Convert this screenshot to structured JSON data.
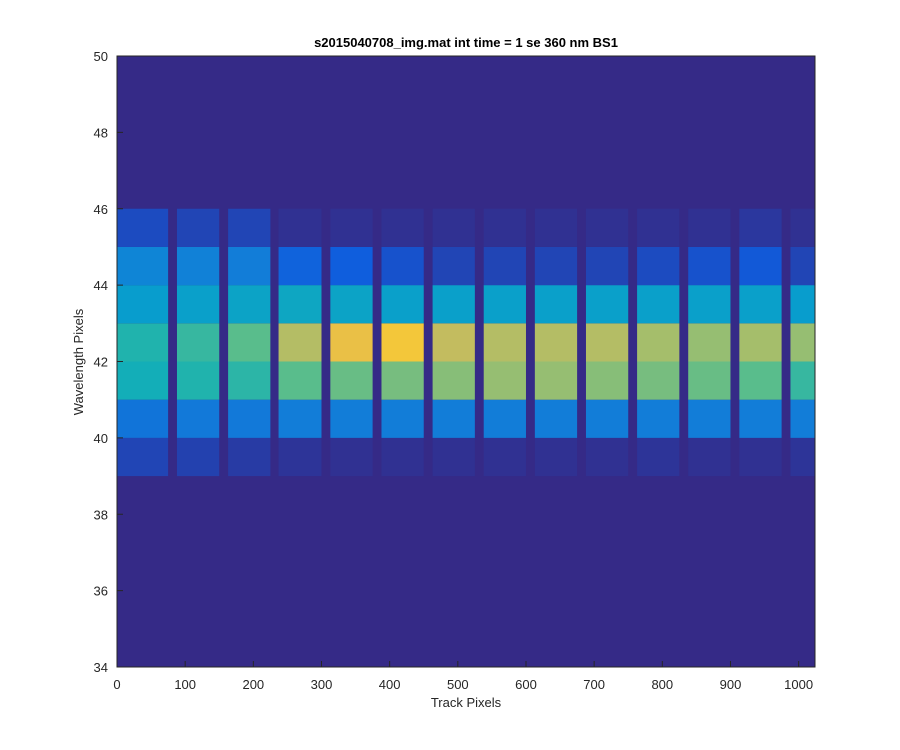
{
  "chart_data": {
    "type": "heatmap",
    "title": "s2015040708_img.mat int time = 1 se  360 nm BS1",
    "xlabel": "Track Pixels",
    "ylabel": "Wavelength Pixels",
    "xlim": [
      0,
      1024
    ],
    "ylim": [
      34,
      50
    ],
    "x_ticks": [
      0,
      100,
      200,
      300,
      400,
      500,
      600,
      700,
      800,
      900,
      1000
    ],
    "y_ticks": [
      34,
      36,
      38,
      40,
      42,
      44,
      46,
      48,
      50
    ],
    "colormap": "parula",
    "color_range": [
      0,
      1
    ],
    "background_value": 0.0,
    "bright_column_ranges": [
      [
        0,
        75
      ],
      [
        88,
        150
      ],
      [
        163,
        225
      ],
      [
        237,
        300
      ],
      [
        313,
        375
      ],
      [
        388,
        450
      ],
      [
        463,
        525
      ],
      [
        538,
        600
      ],
      [
        613,
        675
      ],
      [
        688,
        750
      ],
      [
        763,
        825
      ],
      [
        838,
        900
      ],
      [
        913,
        975
      ],
      [
        988,
        1024
      ]
    ],
    "rows": [
      {
        "wavelength_pixel": 39,
        "block_values": [
          0.08,
          0.07,
          0.05,
          0.03,
          0.02,
          0.02,
          0.02,
          0.02,
          0.02,
          0.02,
          0.03,
          0.02,
          0.02,
          0.03
        ]
      },
      {
        "wavelength_pixel": 40,
        "block_values": [
          0.26,
          0.28,
          0.28,
          0.3,
          0.3,
          0.3,
          0.3,
          0.3,
          0.3,
          0.3,
          0.3,
          0.3,
          0.3,
          0.3
        ]
      },
      {
        "wavelength_pixel": 41,
        "block_values": [
          0.58,
          0.62,
          0.64,
          0.72,
          0.74,
          0.76,
          0.78,
          0.8,
          0.8,
          0.78,
          0.76,
          0.74,
          0.72,
          0.66
        ]
      },
      {
        "wavelength_pixel": 42,
        "block_values": [
          0.62,
          0.66,
          0.72,
          0.84,
          0.92,
          0.94,
          0.86,
          0.84,
          0.84,
          0.84,
          0.82,
          0.8,
          0.82,
          0.8
        ]
      },
      {
        "wavelength_pixel": 43,
        "block_values": [
          0.46,
          0.48,
          0.5,
          0.52,
          0.5,
          0.48,
          0.48,
          0.48,
          0.48,
          0.48,
          0.48,
          0.48,
          0.48,
          0.46
        ]
      },
      {
        "wavelength_pixel": 44,
        "block_values": [
          0.34,
          0.32,
          0.3,
          0.18,
          0.16,
          0.12,
          0.08,
          0.08,
          0.08,
          0.08,
          0.1,
          0.12,
          0.14,
          0.08
        ]
      },
      {
        "wavelength_pixel": 45,
        "block_values": [
          0.1,
          0.08,
          0.08,
          0.02,
          0.02,
          0.02,
          0.02,
          0.02,
          0.02,
          0.02,
          0.02,
          0.02,
          0.04,
          0.02
        ]
      }
    ]
  }
}
